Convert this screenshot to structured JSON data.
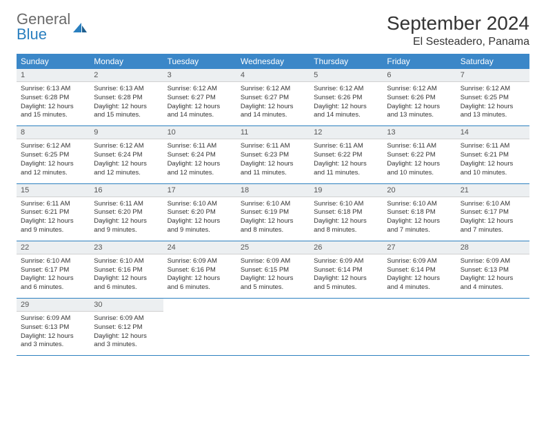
{
  "brand": {
    "name1": "General",
    "name2": "Blue",
    "color_gray": "#6a6a6a",
    "color_blue": "#2a7fbf"
  },
  "header": {
    "month_title": "September 2024",
    "location": "El Sesteadero, Panama"
  },
  "style": {
    "header_bg": "#3b87c8",
    "daynum_bg": "#eceff1",
    "row_border": "#2a7fbf",
    "title_fontsize": 28,
    "location_fontsize": 16,
    "weekday_fontsize": 12,
    "daynum_fontsize": 11,
    "body_fontsize": 9.5,
    "background": "#ffffff"
  },
  "weekdays": [
    "Sunday",
    "Monday",
    "Tuesday",
    "Wednesday",
    "Thursday",
    "Friday",
    "Saturday"
  ],
  "weeks": [
    [
      {
        "day": "1",
        "sunrise": "6:13 AM",
        "sunset": "6:28 PM",
        "daylight": "12 hours and 15 minutes."
      },
      {
        "day": "2",
        "sunrise": "6:13 AM",
        "sunset": "6:28 PM",
        "daylight": "12 hours and 15 minutes."
      },
      {
        "day": "3",
        "sunrise": "6:12 AM",
        "sunset": "6:27 PM",
        "daylight": "12 hours and 14 minutes."
      },
      {
        "day": "4",
        "sunrise": "6:12 AM",
        "sunset": "6:27 PM",
        "daylight": "12 hours and 14 minutes."
      },
      {
        "day": "5",
        "sunrise": "6:12 AM",
        "sunset": "6:26 PM",
        "daylight": "12 hours and 14 minutes."
      },
      {
        "day": "6",
        "sunrise": "6:12 AM",
        "sunset": "6:26 PM",
        "daylight": "12 hours and 13 minutes."
      },
      {
        "day": "7",
        "sunrise": "6:12 AM",
        "sunset": "6:25 PM",
        "daylight": "12 hours and 13 minutes."
      }
    ],
    [
      {
        "day": "8",
        "sunrise": "6:12 AM",
        "sunset": "6:25 PM",
        "daylight": "12 hours and 12 minutes."
      },
      {
        "day": "9",
        "sunrise": "6:12 AM",
        "sunset": "6:24 PM",
        "daylight": "12 hours and 12 minutes."
      },
      {
        "day": "10",
        "sunrise": "6:11 AM",
        "sunset": "6:24 PM",
        "daylight": "12 hours and 12 minutes."
      },
      {
        "day": "11",
        "sunrise": "6:11 AM",
        "sunset": "6:23 PM",
        "daylight": "12 hours and 11 minutes."
      },
      {
        "day": "12",
        "sunrise": "6:11 AM",
        "sunset": "6:22 PM",
        "daylight": "12 hours and 11 minutes."
      },
      {
        "day": "13",
        "sunrise": "6:11 AM",
        "sunset": "6:22 PM",
        "daylight": "12 hours and 10 minutes."
      },
      {
        "day": "14",
        "sunrise": "6:11 AM",
        "sunset": "6:21 PM",
        "daylight": "12 hours and 10 minutes."
      }
    ],
    [
      {
        "day": "15",
        "sunrise": "6:11 AM",
        "sunset": "6:21 PM",
        "daylight": "12 hours and 9 minutes."
      },
      {
        "day": "16",
        "sunrise": "6:11 AM",
        "sunset": "6:20 PM",
        "daylight": "12 hours and 9 minutes."
      },
      {
        "day": "17",
        "sunrise": "6:10 AM",
        "sunset": "6:20 PM",
        "daylight": "12 hours and 9 minutes."
      },
      {
        "day": "18",
        "sunrise": "6:10 AM",
        "sunset": "6:19 PM",
        "daylight": "12 hours and 8 minutes."
      },
      {
        "day": "19",
        "sunrise": "6:10 AM",
        "sunset": "6:18 PM",
        "daylight": "12 hours and 8 minutes."
      },
      {
        "day": "20",
        "sunrise": "6:10 AM",
        "sunset": "6:18 PM",
        "daylight": "12 hours and 7 minutes."
      },
      {
        "day": "21",
        "sunrise": "6:10 AM",
        "sunset": "6:17 PM",
        "daylight": "12 hours and 7 minutes."
      }
    ],
    [
      {
        "day": "22",
        "sunrise": "6:10 AM",
        "sunset": "6:17 PM",
        "daylight": "12 hours and 6 minutes."
      },
      {
        "day": "23",
        "sunrise": "6:10 AM",
        "sunset": "6:16 PM",
        "daylight": "12 hours and 6 minutes."
      },
      {
        "day": "24",
        "sunrise": "6:09 AM",
        "sunset": "6:16 PM",
        "daylight": "12 hours and 6 minutes."
      },
      {
        "day": "25",
        "sunrise": "6:09 AM",
        "sunset": "6:15 PM",
        "daylight": "12 hours and 5 minutes."
      },
      {
        "day": "26",
        "sunrise": "6:09 AM",
        "sunset": "6:14 PM",
        "daylight": "12 hours and 5 minutes."
      },
      {
        "day": "27",
        "sunrise": "6:09 AM",
        "sunset": "6:14 PM",
        "daylight": "12 hours and 4 minutes."
      },
      {
        "day": "28",
        "sunrise": "6:09 AM",
        "sunset": "6:13 PM",
        "daylight": "12 hours and 4 minutes."
      }
    ],
    [
      {
        "day": "29",
        "sunrise": "6:09 AM",
        "sunset": "6:13 PM",
        "daylight": "12 hours and 3 minutes."
      },
      {
        "day": "30",
        "sunrise": "6:09 AM",
        "sunset": "6:12 PM",
        "daylight": "12 hours and 3 minutes."
      },
      null,
      null,
      null,
      null,
      null
    ]
  ],
  "labels": {
    "sunrise_prefix": "Sunrise: ",
    "sunset_prefix": "Sunset: ",
    "daylight_prefix": "Daylight: "
  }
}
